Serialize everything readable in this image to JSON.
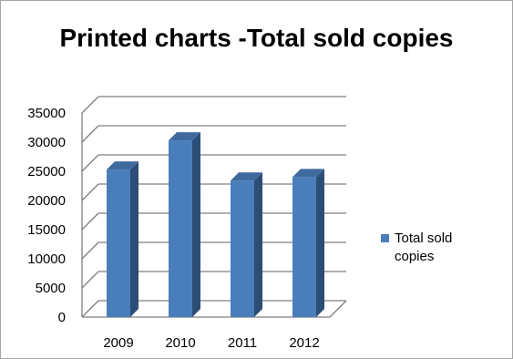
{
  "chart_data": {
    "type": "bar",
    "title": "Printed charts -Total sold copies",
    "categories": [
      "2009",
      "2010",
      "2011",
      "2012"
    ],
    "series": [
      {
        "name": "Total sold copies",
        "values": [
          25300,
          30300,
          23400,
          24000
        ]
      }
    ],
    "ylim": [
      0,
      35000
    ],
    "yticks": [
      0,
      5000,
      10000,
      15000,
      20000,
      25000,
      30000,
      35000
    ],
    "grid": true,
    "legend_position": "right",
    "xlabel": "",
    "ylabel": "",
    "colors": {
      "bar_front": "#4a7ebb",
      "bar_side": "#2c4d75",
      "bar_top": "#3f6a9e",
      "grid": "#7f7f7f",
      "legend": "#4a7ebb"
    }
  }
}
